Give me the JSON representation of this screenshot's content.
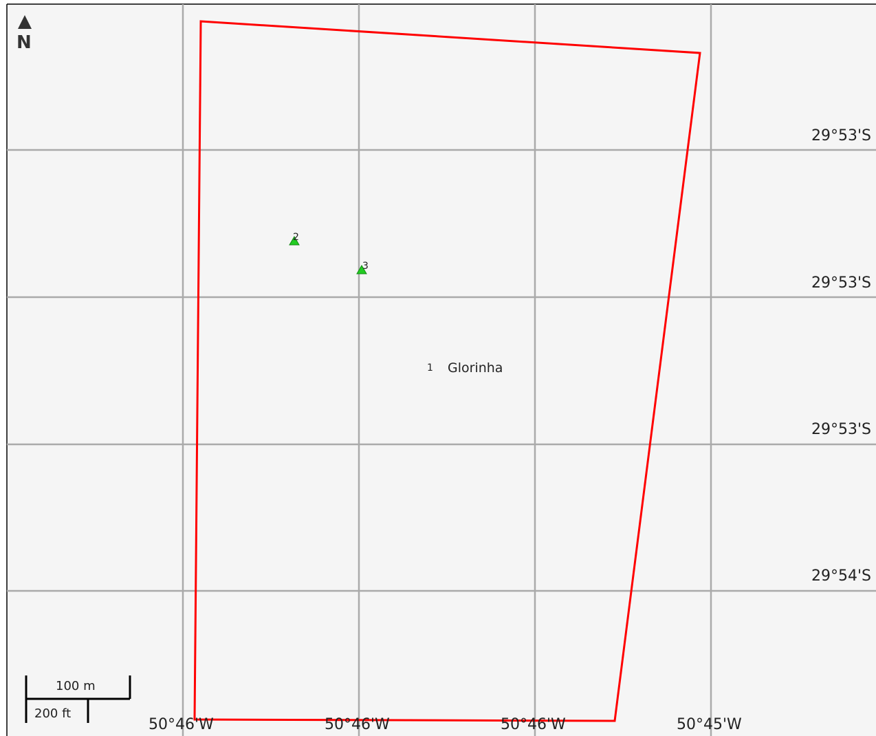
{
  "map": {
    "background_color": "#f5f5f5",
    "grid_color": "#aaaaaa",
    "boundary_color": "#ff0000",
    "marker_color": "#22cc22",
    "north_arrow": {
      "icon": "north-arrow-icon",
      "label": "N"
    },
    "latitude_labels": [
      "29°53'S",
      "29°53'S",
      "29°53'S",
      "29°54'S"
    ],
    "longitude_labels": [
      "50°46'W",
      "50°46'W",
      "50°46'W",
      "50°45'W"
    ],
    "points": [
      {
        "number": "2",
        "icon": "triangle-marker-icon"
      },
      {
        "number": "3",
        "icon": "triangle-marker-icon"
      }
    ],
    "place": {
      "number": "1",
      "name": "Glorinha"
    },
    "scale_bar": {
      "metric_label": "100 m",
      "imperial_label": "200 ft"
    }
  }
}
